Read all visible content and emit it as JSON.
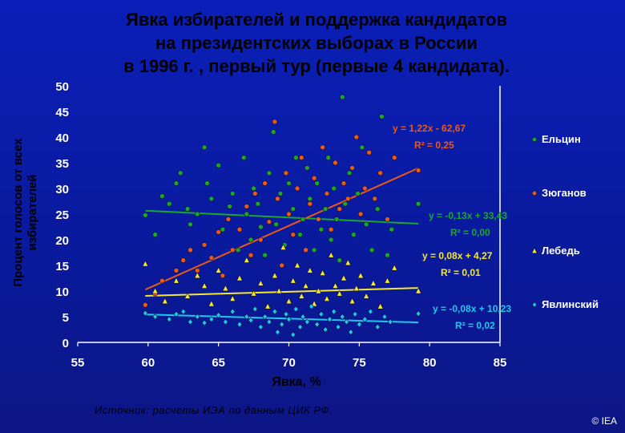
{
  "title_lines": [
    "Явка избирателей и поддержка кандидатов",
    "на президентских выборах в России",
    "в 1996 г. , первый тур (первые 4 кандидата)."
  ],
  "source": "Источник:  расчеты ИЭА по данным ЦИК РФ.",
  "copyright": "© IEA",
  "chart_data": {
    "type": "scatter",
    "title": "Явка избирателей и поддержка кандидатов на президентских выборах в России в 1996 г. , первый тур (первые 4 кандидата).",
    "xlabel": "Явка, %",
    "ylabel": "Процент голосов от всех избирателей",
    "xlim": [
      55,
      85
    ],
    "ylim": [
      0,
      50
    ],
    "x_ticks": [
      "55",
      "60",
      "65",
      "70",
      "75",
      "80",
      "85"
    ],
    "y_ticks": [
      "0",
      "5",
      "10",
      "15",
      "20",
      "25",
      "30",
      "35",
      "40",
      "45",
      "50"
    ],
    "grid": false,
    "legend_position": "right",
    "series": [
      {
        "name": "Ельцин",
        "marker": "circle",
        "color": "#1aa82a",
        "trend": {
          "slope": -0.13,
          "intercept": 33.43,
          "x_range": [
            59.8,
            79.2
          ],
          "equation": "y = -0,13x + 33,43",
          "r2": "R² = 0,00",
          "color": "#1aa82a"
        },
        "points": [
          [
            59.8,
            24.8
          ],
          [
            60.5,
            21
          ],
          [
            61,
            28.5
          ],
          [
            61.5,
            27
          ],
          [
            62,
            31
          ],
          [
            62.3,
            33
          ],
          [
            62.8,
            26
          ],
          [
            63,
            23
          ],
          [
            63.5,
            25
          ],
          [
            64,
            38
          ],
          [
            64.2,
            31
          ],
          [
            64.5,
            28
          ],
          [
            65,
            34.5
          ],
          [
            65.3,
            22
          ],
          [
            65.8,
            26.5
          ],
          [
            66,
            29
          ],
          [
            66.4,
            18
          ],
          [
            66.8,
            36
          ],
          [
            67,
            25
          ],
          [
            67.3,
            20
          ],
          [
            67.5,
            30
          ],
          [
            67.8,
            27
          ],
          [
            68,
            22.5
          ],
          [
            68.3,
            17
          ],
          [
            68.6,
            33
          ],
          [
            68.9,
            41
          ],
          [
            69.1,
            23
          ],
          [
            69.4,
            29
          ],
          [
            69.7,
            19
          ],
          [
            70,
            31
          ],
          [
            70.3,
            26
          ],
          [
            70.5,
            36
          ],
          [
            70.8,
            21
          ],
          [
            71,
            24
          ],
          [
            71.3,
            34
          ],
          [
            71.5,
            28
          ],
          [
            71.8,
            18
          ],
          [
            72,
            31
          ],
          [
            72.3,
            22
          ],
          [
            72.6,
            26
          ],
          [
            72.8,
            36
          ],
          [
            73,
            20
          ],
          [
            73.2,
            30
          ],
          [
            73.4,
            24
          ],
          [
            73.6,
            16
          ],
          [
            73.8,
            47.8
          ],
          [
            74,
            27
          ],
          [
            74.3,
            33
          ],
          [
            74.6,
            21
          ],
          [
            74.9,
            29
          ],
          [
            75.2,
            38
          ],
          [
            75.5,
            23
          ],
          [
            75.9,
            18
          ],
          [
            76.3,
            26
          ],
          [
            76.6,
            44
          ],
          [
            77,
            17
          ],
          [
            77.3,
            22
          ],
          [
            79.2,
            27
          ]
        ]
      },
      {
        "name": "Зюганов",
        "marker": "circle",
        "color": "#e85a1a",
        "trend": {
          "slope": 1.22,
          "intercept": -62.67,
          "x_range": [
            59.8,
            79.2
          ],
          "equation": "y = 1,22x - 62,67",
          "r2": "R² = 0,25",
          "color": "#e85a1a"
        },
        "points": [
          [
            59.8,
            7.3
          ],
          [
            60.5,
            9.5
          ],
          [
            61,
            12
          ],
          [
            62,
            14
          ],
          [
            62.5,
            16
          ],
          [
            63,
            18
          ],
          [
            63.5,
            14
          ],
          [
            64,
            19
          ],
          [
            64.5,
            16.5
          ],
          [
            65,
            21.5
          ],
          [
            65.3,
            13
          ],
          [
            65.7,
            24
          ],
          [
            66,
            18
          ],
          [
            66.5,
            22
          ],
          [
            67,
            26.5
          ],
          [
            67.3,
            17
          ],
          [
            67.6,
            29
          ],
          [
            68,
            20
          ],
          [
            68.3,
            31
          ],
          [
            68.6,
            23.5
          ],
          [
            69,
            43
          ],
          [
            69.2,
            28
          ],
          [
            69.5,
            15
          ],
          [
            69.8,
            33
          ],
          [
            70,
            25
          ],
          [
            70.3,
            21
          ],
          [
            70.6,
            30
          ],
          [
            70.9,
            36
          ],
          [
            71.2,
            18
          ],
          [
            71.5,
            27
          ],
          [
            71.8,
            32
          ],
          [
            72.1,
            24
          ],
          [
            72.4,
            38
          ],
          [
            72.7,
            29
          ],
          [
            73,
            22
          ],
          [
            73.3,
            35
          ],
          [
            73.6,
            26
          ],
          [
            73.9,
            31
          ],
          [
            74.2,
            28
          ],
          [
            74.5,
            34
          ],
          [
            74.8,
            40
          ],
          [
            75.1,
            25
          ],
          [
            75.4,
            30
          ],
          [
            75.7,
            37
          ],
          [
            76.1,
            28
          ],
          [
            76.5,
            33
          ],
          [
            77,
            24
          ],
          [
            77.5,
            36
          ],
          [
            79.2,
            33.5
          ]
        ]
      },
      {
        "name": "Лебедь",
        "marker": "triangle",
        "color": "#f5e830",
        "trend": {
          "slope": 0.08,
          "intercept": 4.27,
          "x_range": [
            59.8,
            79.2
          ],
          "equation": "y = 0,08x + 4,27",
          "r2": "R² = 0,01",
          "color": "#f5e830"
        },
        "points": [
          [
            59.8,
            15.3
          ],
          [
            60.5,
            10
          ],
          [
            61.2,
            8
          ],
          [
            62,
            12
          ],
          [
            62.8,
            9
          ],
          [
            63.5,
            13
          ],
          [
            64,
            11
          ],
          [
            64.5,
            7.5
          ],
          [
            65,
            14
          ],
          [
            65.5,
            10.5
          ],
          [
            66,
            8.5
          ],
          [
            66.5,
            12.5
          ],
          [
            67,
            16
          ],
          [
            67.5,
            9.5
          ],
          [
            68,
            11.5
          ],
          [
            68.5,
            7
          ],
          [
            69,
            13
          ],
          [
            69.3,
            10
          ],
          [
            69.6,
            18.5
          ],
          [
            70,
            8
          ],
          [
            70.3,
            12
          ],
          [
            70.6,
            15
          ],
          [
            70.9,
            9
          ],
          [
            71.2,
            11
          ],
          [
            71.5,
            14
          ],
          [
            71.8,
            7.5
          ],
          [
            72.1,
            10
          ],
          [
            72.4,
            13.5
          ],
          [
            72.7,
            8.5
          ],
          [
            73,
            17
          ],
          [
            73.3,
            11
          ],
          [
            73.6,
            9.5
          ],
          [
            73.9,
            12.5
          ],
          [
            74.2,
            15.5
          ],
          [
            74.5,
            8
          ],
          [
            74.8,
            10.5
          ],
          [
            75.1,
            13
          ],
          [
            75.5,
            9
          ],
          [
            76,
            11.5
          ],
          [
            76.5,
            7
          ],
          [
            77,
            12
          ],
          [
            77.5,
            14.5
          ],
          [
            79.2,
            10
          ]
        ]
      },
      {
        "name": "Явлинский",
        "marker": "diamond",
        "color": "#1ec8e8",
        "trend": {
          "slope": -0.08,
          "intercept": 10.23,
          "x_range": [
            59.8,
            79.2
          ],
          "equation": "y = -0,08x + 10,23",
          "r2": "R² = 0,02",
          "color": "#1ec8e8"
        },
        "points": [
          [
            59.8,
            5.7
          ],
          [
            60.5,
            5
          ],
          [
            61.5,
            4.5
          ],
          [
            62,
            5.5
          ],
          [
            62.5,
            6
          ],
          [
            63,
            4
          ],
          [
            63.5,
            5
          ],
          [
            64,
            3.8
          ],
          [
            64.5,
            4.5
          ],
          [
            65,
            5.3
          ],
          [
            65.5,
            4
          ],
          [
            66,
            6
          ],
          [
            66.5,
            3.5
          ],
          [
            67,
            5
          ],
          [
            67.3,
            4.3
          ],
          [
            67.6,
            6.5
          ],
          [
            68,
            3
          ],
          [
            68.3,
            5
          ],
          [
            68.6,
            4
          ],
          [
            69,
            6
          ],
          [
            69.2,
            2
          ],
          [
            69.5,
            3.5
          ],
          [
            69.8,
            5.5
          ],
          [
            70,
            4.5
          ],
          [
            70.3,
            1.5
          ],
          [
            70.5,
            6.5
          ],
          [
            70.8,
            3
          ],
          [
            71,
            5
          ],
          [
            71.3,
            4
          ],
          [
            71.6,
            7
          ],
          [
            72,
            3.5
          ],
          [
            72.3,
            5.5
          ],
          [
            72.6,
            2.5
          ],
          [
            72.9,
            4.5
          ],
          [
            73.2,
            6
          ],
          [
            73.5,
            3
          ],
          [
            73.8,
            5
          ],
          [
            74.1,
            4
          ],
          [
            74.4,
            2
          ],
          [
            74.7,
            5.5
          ],
          [
            75,
            3.5
          ],
          [
            75.4,
            4.5
          ],
          [
            75.8,
            6
          ],
          [
            76.3,
            3
          ],
          [
            76.8,
            5
          ],
          [
            77.2,
            4
          ],
          [
            79.2,
            5.6
          ]
        ]
      }
    ]
  }
}
